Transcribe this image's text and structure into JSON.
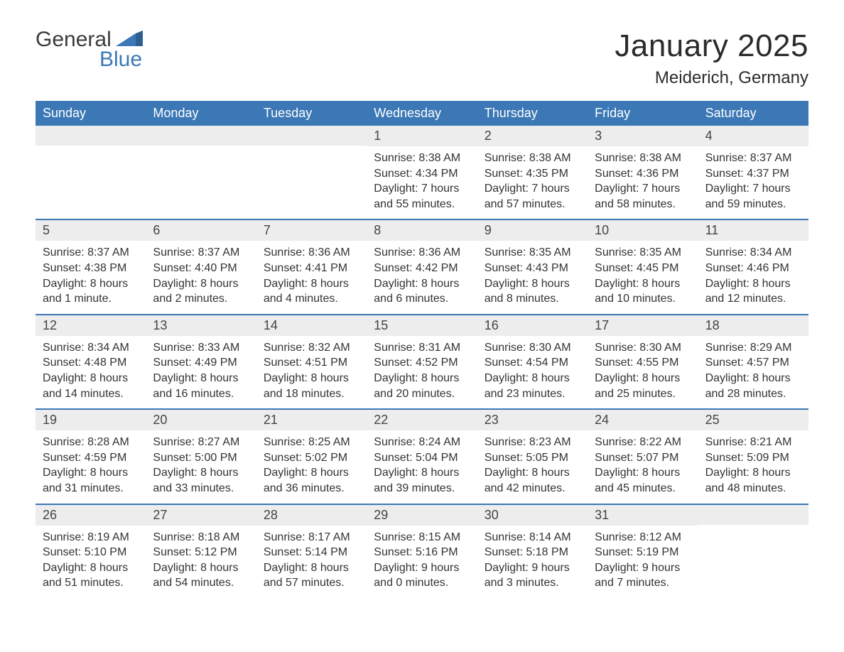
{
  "logo": {
    "word1": "General",
    "word2": "Blue",
    "mark_color": "#3b78b5",
    "text_dark": "#3b3b3b"
  },
  "title": "January 2025",
  "location": "Meiderich, Germany",
  "colors": {
    "header_bg": "#3b78b5",
    "header_text": "#ffffff",
    "daynum_bg": "#ededed",
    "daynum_text": "#444444",
    "body_text": "#333333",
    "rule": "#3b78b5",
    "page_bg": "#ffffff"
  },
  "weekdays": [
    "Sunday",
    "Monday",
    "Tuesday",
    "Wednesday",
    "Thursday",
    "Friday",
    "Saturday"
  ],
  "weeks": [
    [
      {
        "num": "",
        "sunrise": "",
        "sunset": "",
        "daylight1": "",
        "daylight2": ""
      },
      {
        "num": "",
        "sunrise": "",
        "sunset": "",
        "daylight1": "",
        "daylight2": ""
      },
      {
        "num": "",
        "sunrise": "",
        "sunset": "",
        "daylight1": "",
        "daylight2": ""
      },
      {
        "num": "1",
        "sunrise": "Sunrise: 8:38 AM",
        "sunset": "Sunset: 4:34 PM",
        "daylight1": "Daylight: 7 hours",
        "daylight2": "and 55 minutes."
      },
      {
        "num": "2",
        "sunrise": "Sunrise: 8:38 AM",
        "sunset": "Sunset: 4:35 PM",
        "daylight1": "Daylight: 7 hours",
        "daylight2": "and 57 minutes."
      },
      {
        "num": "3",
        "sunrise": "Sunrise: 8:38 AM",
        "sunset": "Sunset: 4:36 PM",
        "daylight1": "Daylight: 7 hours",
        "daylight2": "and 58 minutes."
      },
      {
        "num": "4",
        "sunrise": "Sunrise: 8:37 AM",
        "sunset": "Sunset: 4:37 PM",
        "daylight1": "Daylight: 7 hours",
        "daylight2": "and 59 minutes."
      }
    ],
    [
      {
        "num": "5",
        "sunrise": "Sunrise: 8:37 AM",
        "sunset": "Sunset: 4:38 PM",
        "daylight1": "Daylight: 8 hours",
        "daylight2": "and 1 minute."
      },
      {
        "num": "6",
        "sunrise": "Sunrise: 8:37 AM",
        "sunset": "Sunset: 4:40 PM",
        "daylight1": "Daylight: 8 hours",
        "daylight2": "and 2 minutes."
      },
      {
        "num": "7",
        "sunrise": "Sunrise: 8:36 AM",
        "sunset": "Sunset: 4:41 PM",
        "daylight1": "Daylight: 8 hours",
        "daylight2": "and 4 minutes."
      },
      {
        "num": "8",
        "sunrise": "Sunrise: 8:36 AM",
        "sunset": "Sunset: 4:42 PM",
        "daylight1": "Daylight: 8 hours",
        "daylight2": "and 6 minutes."
      },
      {
        "num": "9",
        "sunrise": "Sunrise: 8:35 AM",
        "sunset": "Sunset: 4:43 PM",
        "daylight1": "Daylight: 8 hours",
        "daylight2": "and 8 minutes."
      },
      {
        "num": "10",
        "sunrise": "Sunrise: 8:35 AM",
        "sunset": "Sunset: 4:45 PM",
        "daylight1": "Daylight: 8 hours",
        "daylight2": "and 10 minutes."
      },
      {
        "num": "11",
        "sunrise": "Sunrise: 8:34 AM",
        "sunset": "Sunset: 4:46 PM",
        "daylight1": "Daylight: 8 hours",
        "daylight2": "and 12 minutes."
      }
    ],
    [
      {
        "num": "12",
        "sunrise": "Sunrise: 8:34 AM",
        "sunset": "Sunset: 4:48 PM",
        "daylight1": "Daylight: 8 hours",
        "daylight2": "and 14 minutes."
      },
      {
        "num": "13",
        "sunrise": "Sunrise: 8:33 AM",
        "sunset": "Sunset: 4:49 PM",
        "daylight1": "Daylight: 8 hours",
        "daylight2": "and 16 minutes."
      },
      {
        "num": "14",
        "sunrise": "Sunrise: 8:32 AM",
        "sunset": "Sunset: 4:51 PM",
        "daylight1": "Daylight: 8 hours",
        "daylight2": "and 18 minutes."
      },
      {
        "num": "15",
        "sunrise": "Sunrise: 8:31 AM",
        "sunset": "Sunset: 4:52 PM",
        "daylight1": "Daylight: 8 hours",
        "daylight2": "and 20 minutes."
      },
      {
        "num": "16",
        "sunrise": "Sunrise: 8:30 AM",
        "sunset": "Sunset: 4:54 PM",
        "daylight1": "Daylight: 8 hours",
        "daylight2": "and 23 minutes."
      },
      {
        "num": "17",
        "sunrise": "Sunrise: 8:30 AM",
        "sunset": "Sunset: 4:55 PM",
        "daylight1": "Daylight: 8 hours",
        "daylight2": "and 25 minutes."
      },
      {
        "num": "18",
        "sunrise": "Sunrise: 8:29 AM",
        "sunset": "Sunset: 4:57 PM",
        "daylight1": "Daylight: 8 hours",
        "daylight2": "and 28 minutes."
      }
    ],
    [
      {
        "num": "19",
        "sunrise": "Sunrise: 8:28 AM",
        "sunset": "Sunset: 4:59 PM",
        "daylight1": "Daylight: 8 hours",
        "daylight2": "and 31 minutes."
      },
      {
        "num": "20",
        "sunrise": "Sunrise: 8:27 AM",
        "sunset": "Sunset: 5:00 PM",
        "daylight1": "Daylight: 8 hours",
        "daylight2": "and 33 minutes."
      },
      {
        "num": "21",
        "sunrise": "Sunrise: 8:25 AM",
        "sunset": "Sunset: 5:02 PM",
        "daylight1": "Daylight: 8 hours",
        "daylight2": "and 36 minutes."
      },
      {
        "num": "22",
        "sunrise": "Sunrise: 8:24 AM",
        "sunset": "Sunset: 5:04 PM",
        "daylight1": "Daylight: 8 hours",
        "daylight2": "and 39 minutes."
      },
      {
        "num": "23",
        "sunrise": "Sunrise: 8:23 AM",
        "sunset": "Sunset: 5:05 PM",
        "daylight1": "Daylight: 8 hours",
        "daylight2": "and 42 minutes."
      },
      {
        "num": "24",
        "sunrise": "Sunrise: 8:22 AM",
        "sunset": "Sunset: 5:07 PM",
        "daylight1": "Daylight: 8 hours",
        "daylight2": "and 45 minutes."
      },
      {
        "num": "25",
        "sunrise": "Sunrise: 8:21 AM",
        "sunset": "Sunset: 5:09 PM",
        "daylight1": "Daylight: 8 hours",
        "daylight2": "and 48 minutes."
      }
    ],
    [
      {
        "num": "26",
        "sunrise": "Sunrise: 8:19 AM",
        "sunset": "Sunset: 5:10 PM",
        "daylight1": "Daylight: 8 hours",
        "daylight2": "and 51 minutes."
      },
      {
        "num": "27",
        "sunrise": "Sunrise: 8:18 AM",
        "sunset": "Sunset: 5:12 PM",
        "daylight1": "Daylight: 8 hours",
        "daylight2": "and 54 minutes."
      },
      {
        "num": "28",
        "sunrise": "Sunrise: 8:17 AM",
        "sunset": "Sunset: 5:14 PM",
        "daylight1": "Daylight: 8 hours",
        "daylight2": "and 57 minutes."
      },
      {
        "num": "29",
        "sunrise": "Sunrise: 8:15 AM",
        "sunset": "Sunset: 5:16 PM",
        "daylight1": "Daylight: 9 hours",
        "daylight2": "and 0 minutes."
      },
      {
        "num": "30",
        "sunrise": "Sunrise: 8:14 AM",
        "sunset": "Sunset: 5:18 PM",
        "daylight1": "Daylight: 9 hours",
        "daylight2": "and 3 minutes."
      },
      {
        "num": "31",
        "sunrise": "Sunrise: 8:12 AM",
        "sunset": "Sunset: 5:19 PM",
        "daylight1": "Daylight: 9 hours",
        "daylight2": "and 7 minutes."
      },
      {
        "num": "",
        "sunrise": "",
        "sunset": "",
        "daylight1": "",
        "daylight2": ""
      }
    ]
  ]
}
